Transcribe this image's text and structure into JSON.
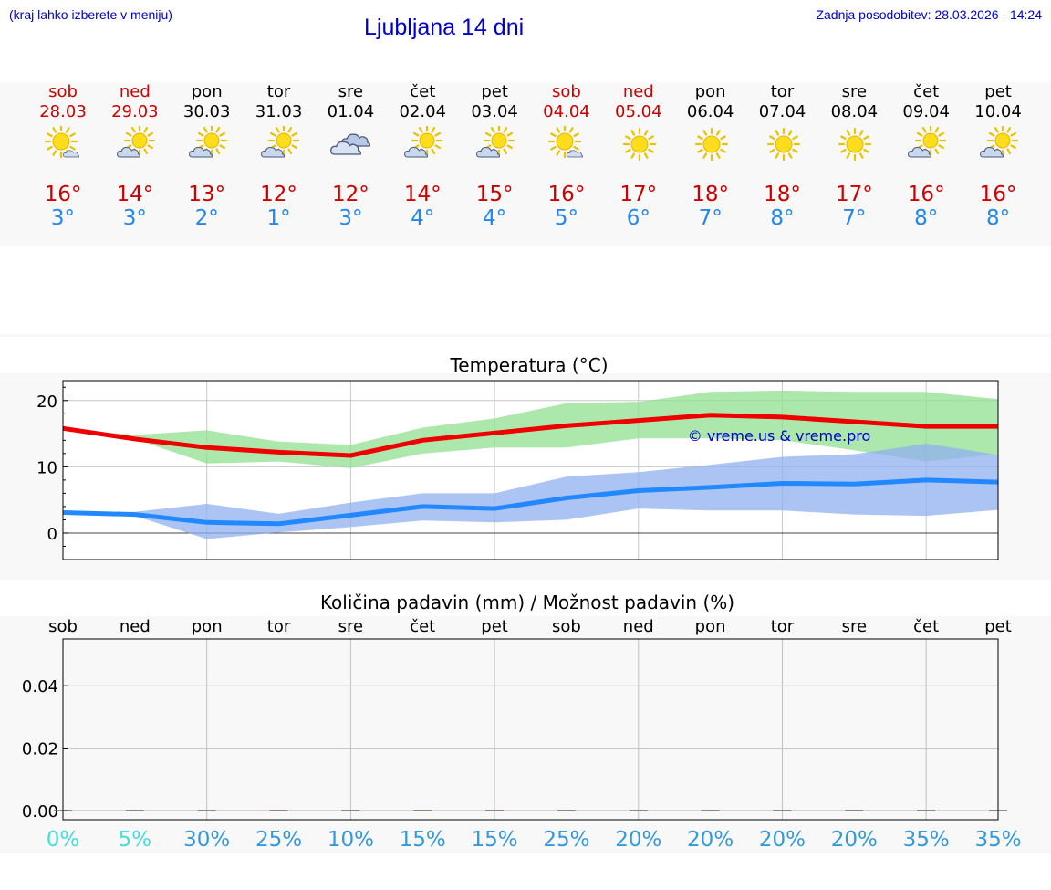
{
  "header": {
    "hint": "(kraj lahko izberete v meniju)",
    "title": "Ljubljana 14 dni",
    "updated": "Zadnja posodobitev: 28.03.2026 - 14:24"
  },
  "days": [
    {
      "name": "sob",
      "date": "28.03",
      "weekend": true,
      "icon": "sun-small-cloud-icon",
      "max": "16°",
      "min": "3°"
    },
    {
      "name": "ned",
      "date": "29.03",
      "weekend": true,
      "icon": "sun-cloud-icon",
      "max": "14°",
      "min": "3°"
    },
    {
      "name": "pon",
      "date": "30.03",
      "weekend": false,
      "icon": "sun-cloud-icon",
      "max": "13°",
      "min": "2°"
    },
    {
      "name": "tor",
      "date": "31.03",
      "weekend": false,
      "icon": "sun-cloud-icon",
      "max": "12°",
      "min": "1°"
    },
    {
      "name": "sre",
      "date": "01.04",
      "weekend": false,
      "icon": "cloudy-icon",
      "max": "12°",
      "min": "3°"
    },
    {
      "name": "čet",
      "date": "02.04",
      "weekend": false,
      "icon": "sun-cloud-icon",
      "max": "14°",
      "min": "4°"
    },
    {
      "name": "pet",
      "date": "03.04",
      "weekend": false,
      "icon": "sun-cloud-icon",
      "max": "15°",
      "min": "4°"
    },
    {
      "name": "sob",
      "date": "04.04",
      "weekend": true,
      "icon": "sun-small-cloud-icon",
      "max": "16°",
      "min": "5°"
    },
    {
      "name": "ned",
      "date": "05.04",
      "weekend": true,
      "icon": "sun-icon",
      "max": "17°",
      "min": "6°"
    },
    {
      "name": "pon",
      "date": "06.04",
      "weekend": false,
      "icon": "sun-icon",
      "max": "18°",
      "min": "7°"
    },
    {
      "name": "tor",
      "date": "07.04",
      "weekend": false,
      "icon": "sun-icon",
      "max": "18°",
      "min": "8°"
    },
    {
      "name": "sre",
      "date": "08.04",
      "weekend": false,
      "icon": "sun-icon",
      "max": "17°",
      "min": "7°"
    },
    {
      "name": "čet",
      "date": "09.04",
      "weekend": false,
      "icon": "sun-cloud-icon",
      "max": "16°",
      "min": "8°"
    },
    {
      "name": "pet",
      "date": "10.04",
      "weekend": false,
      "icon": "sun-cloud-icon",
      "max": "16°",
      "min": "8°"
    }
  ],
  "colors": {
    "max": "#ee0000",
    "min": "#2288ff",
    "max_band": "#90e090",
    "min_band": "#90b0f0",
    "weekend": "#cc0000",
    "copyright": "#0000cc"
  },
  "chart_data": [
    {
      "type": "line",
      "title": "Temperatura (°C)",
      "x": [
        "28.03",
        "29.03",
        "30.03",
        "31.03",
        "01.04",
        "02.04",
        "03.04",
        "04.04",
        "05.04",
        "06.04",
        "07.04",
        "08.04",
        "09.04",
        "10.04"
      ],
      "ylim": [
        -4,
        23
      ],
      "yticks": [
        0,
        10,
        20
      ],
      "yticklabels": [
        "0",
        "10",
        "20"
      ],
      "series": [
        {
          "name": "max",
          "values": [
            15.8,
            14.2,
            12.9,
            12.2,
            11.7,
            14.0,
            15.1,
            16.2,
            17.0,
            17.8,
            17.5,
            16.8,
            16.1,
            16.1
          ],
          "band_low": [
            15.8,
            14.2,
            10.5,
            10.8,
            9.8,
            12.0,
            12.9,
            12.9,
            14.3,
            14.3,
            14.0,
            12.5,
            10.8,
            11.9
          ],
          "band_high": [
            15.8,
            14.8,
            15.5,
            13.8,
            13.3,
            15.9,
            17.3,
            19.6,
            19.8,
            21.3,
            21.5,
            21.3,
            21.3,
            20.2
          ]
        },
        {
          "name": "min",
          "values": [
            3.1,
            2.8,
            1.6,
            1.4,
            2.7,
            4.0,
            3.7,
            5.3,
            6.4,
            6.9,
            7.5,
            7.4,
            8.0,
            7.7
          ],
          "band_low": [
            3.1,
            2.6,
            -0.9,
            0.1,
            0.9,
            1.9,
            1.6,
            2.0,
            3.7,
            3.4,
            3.4,
            2.8,
            2.6,
            3.5
          ],
          "band_high": [
            3.1,
            3.2,
            4.4,
            2.9,
            4.6,
            6.0,
            6.0,
            8.5,
            9.2,
            10.3,
            11.5,
            11.9,
            13.5,
            11.8
          ]
        }
      ],
      "annotation": "© vreme.us & vreme.pro"
    },
    {
      "type": "bar",
      "title": "Količina padavin (mm) / Možnost padavin (%)",
      "categories": [
        "sob",
        "ned",
        "pon",
        "tor",
        "sre",
        "čet",
        "pet",
        "sob",
        "ned",
        "pon",
        "tor",
        "sre",
        "čet",
        "pet"
      ],
      "values": [
        0,
        0,
        0,
        0,
        0,
        0,
        0,
        0,
        0,
        0,
        0,
        0,
        0,
        0
      ],
      "ylim": [
        -0.003,
        0.055
      ],
      "yticks": [
        0,
        0.02,
        0.04
      ],
      "yticklabels": [
        "0.00",
        "0.02",
        "0.04"
      ],
      "probabilities": [
        "0%",
        "5%",
        "30%",
        "25%",
        "10%",
        "15%",
        "15%",
        "25%",
        "20%",
        "20%",
        "20%",
        "20%",
        "35%",
        "35%"
      ],
      "probability_colors": [
        "#44dddd",
        "#44dddd",
        "#3399dd",
        "#3399dd",
        "#3399dd",
        "#3399dd",
        "#3399dd",
        "#3399dd",
        "#3399dd",
        "#3399dd",
        "#3399dd",
        "#3399dd",
        "#3399dd",
        "#3399dd"
      ]
    }
  ]
}
